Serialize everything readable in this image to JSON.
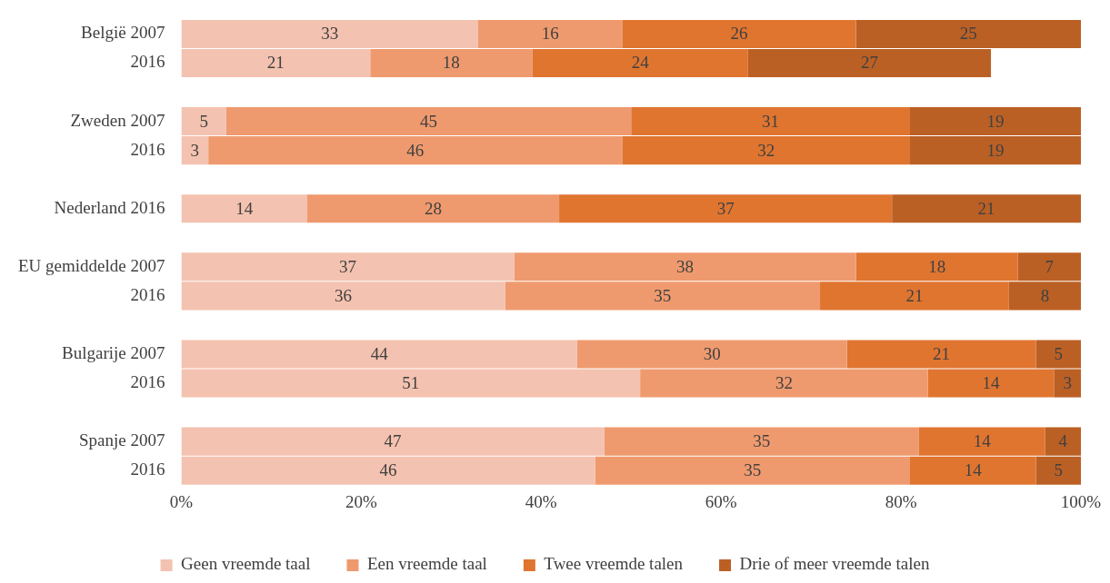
{
  "chart_data": {
    "type": "bar",
    "orientation": "horizontal",
    "stacked": true,
    "categories": [
      "België 2007",
      "2016",
      null,
      "Zweden 2007",
      "2016",
      null,
      "Nederland 2016",
      null,
      "EU gemiddelde 2007",
      "2016",
      null,
      "Bulgarije 2007",
      "2016",
      null,
      "Spanje 2007",
      "2016"
    ],
    "series": [
      {
        "name": "Geen vreemde taal",
        "color": "#f4c2b0",
        "values": [
          33,
          21,
          null,
          5,
          3,
          null,
          14,
          null,
          37,
          36,
          null,
          44,
          51,
          null,
          47,
          46
        ]
      },
      {
        "name": "Een vreemde taal",
        "color": "#ef9a6e",
        "values": [
          16,
          18,
          null,
          45,
          46,
          null,
          28,
          null,
          38,
          35,
          null,
          30,
          32,
          null,
          35,
          35
        ]
      },
      {
        "name": "Twee vreemde talen",
        "color": "#e07530",
        "values": [
          26,
          24,
          null,
          31,
          32,
          null,
          37,
          null,
          18,
          21,
          null,
          21,
          14,
          null,
          14,
          14
        ]
      },
      {
        "name": "Drie of meer vreemde talen",
        "color": "#bb6025",
        "values": [
          25,
          27,
          null,
          19,
          19,
          null,
          21,
          null,
          7,
          8,
          null,
          5,
          3,
          null,
          4,
          5
        ]
      }
    ],
    "xlim": [
      0,
      100
    ],
    "xticks": [
      {
        "value": 0,
        "label": "0%"
      },
      {
        "value": 20,
        "label": "20%"
      },
      {
        "value": 40,
        "label": "40%"
      },
      {
        "value": 60,
        "label": "60%"
      },
      {
        "value": 80,
        "label": "80%"
      },
      {
        "value": 100,
        "label": "100%"
      }
    ],
    "grid": false,
    "legend": "bottom",
    "data_labels": true
  }
}
